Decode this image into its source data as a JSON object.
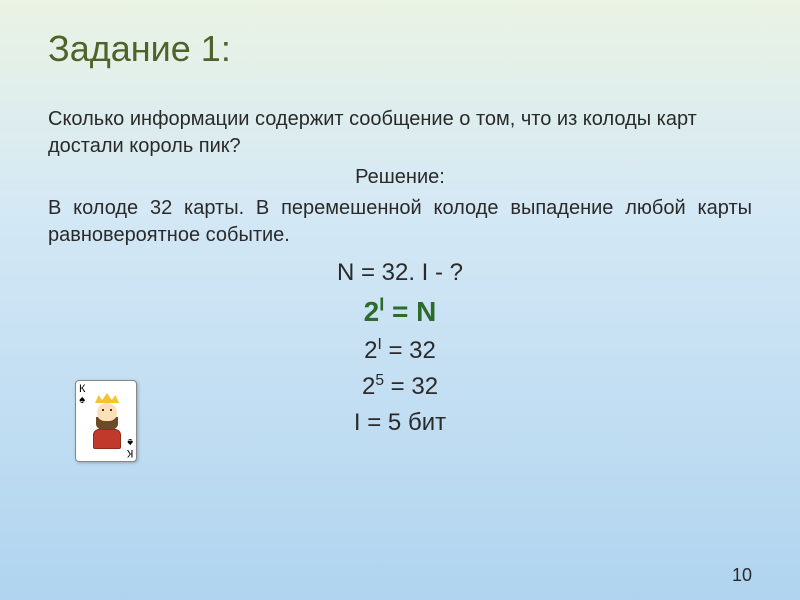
{
  "slide": {
    "background_gradient": [
      "#eaf3e4",
      "#d4e8f5",
      "#b0d4ef"
    ],
    "title": "Задание 1:",
    "title_color": "#4f6228",
    "title_fontsize": 36,
    "question": "Сколько информации содержит сообщение о том, что из колоды карт достали король пик?",
    "solution_label": "Решение:",
    "context": "В колоде 32 карты. В перемешенной колоде выпадение любой карты равновероятное событие.",
    "body_fontsize": 20,
    "body_color": "#2a2a2a",
    "math": {
      "fontsize": 24,
      "highlight_color": "#2d6b2d",
      "highlight_fontsize": 28,
      "lines": {
        "n_given": "N = 32. I - ?",
        "formula_base": "2",
        "formula_exp": "I",
        "formula_eq": " = N",
        "sub1_base": "2",
        "sub1_exp": "I",
        "sub1_eq": " = 32",
        "sub2_base": "2",
        "sub2_exp": "5",
        "sub2_eq": " = 32",
        "answer": "I = 5 бит"
      }
    },
    "card": {
      "rank": "К",
      "suit_glyph": "♠",
      "suit_color": "#000000",
      "bg": "#ffffff"
    },
    "page_number": "10"
  }
}
